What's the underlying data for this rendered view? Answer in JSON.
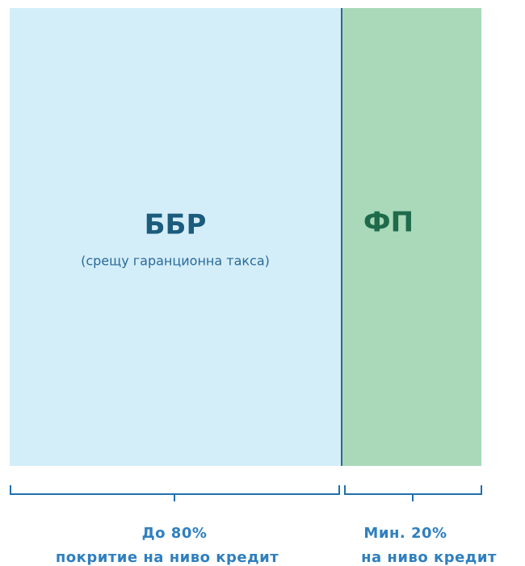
{
  "left": {
    "title": "ББР",
    "subtitle": "(срещу гаранционна такса)",
    "share": "До 80%",
    "note": "покритие на ниво кредит"
  },
  "right": {
    "title": "ФП",
    "share": "Мин. 20%",
    "note": "на ниво кредит"
  }
}
